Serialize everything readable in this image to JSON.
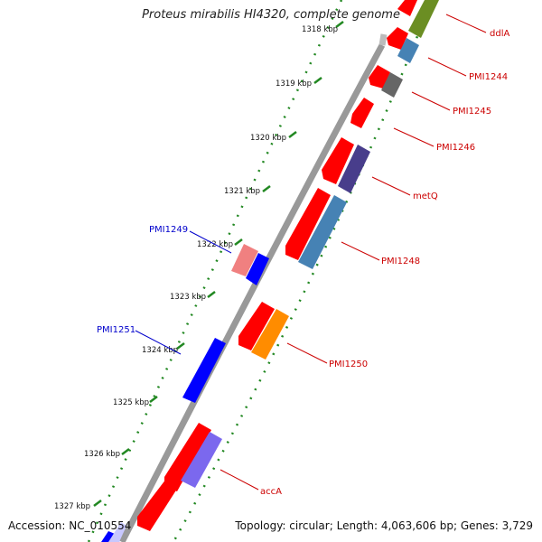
{
  "title": "Proteus mirabilis HI4320, complete genome",
  "footer": {
    "accession_label": "Accession:",
    "accession": "NC_010554",
    "topology_label": "Topology:",
    "topology": "circular",
    "length_label": "Length:",
    "length": "4,063,606 bp",
    "genes_label": "Genes:",
    "genes": "3,729"
  },
  "ticks": [
    "1318 kbp",
    "1319 kbp",
    "1320 kbp",
    "1321 kbp",
    "1322 kbp",
    "1323 kbp",
    "1324 kbp",
    "1325 kbp",
    "1326 kbp",
    "1327 kbp"
  ],
  "gene_labels": [
    {
      "text": "ddlA",
      "color": "#cc0000"
    },
    {
      "text": "PMI1244",
      "color": "#cc0000"
    },
    {
      "text": "PMI1245",
      "color": "#cc0000"
    },
    {
      "text": "PMI1246",
      "color": "#cc0000"
    },
    {
      "text": "metQ",
      "color": "#cc0000"
    },
    {
      "text": "PMI1248",
      "color": "#cc0000"
    },
    {
      "text": "PMI1249",
      "color": "#0000cc"
    },
    {
      "text": "PMI1250",
      "color": "#cc0000"
    },
    {
      "text": "PMI1251",
      "color": "#0000cc"
    },
    {
      "text": "accA",
      "color": "#cc0000"
    }
  ],
  "colors": {
    "backbone": "#888888",
    "dots": "#228822",
    "red": "#ff0000",
    "blue": "#0000ff",
    "steelblue": "#4682b4",
    "gray": "#666666",
    "darkslate": "#483d8b",
    "orange": "#ff8c00",
    "pink": "#f08080",
    "purple": "#7b68ee",
    "olive": "#6b8e23",
    "lavender": "#c8c8ff"
  }
}
